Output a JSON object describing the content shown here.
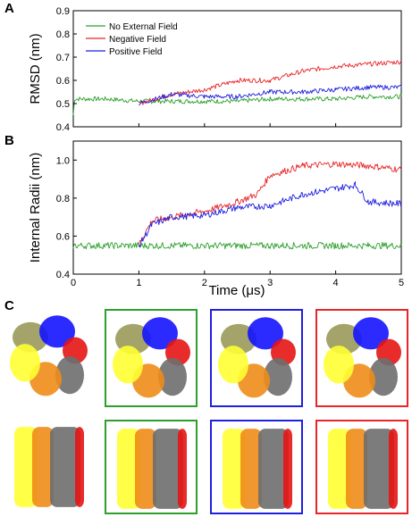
{
  "panel_c_label": "C",
  "chart_data": [
    {
      "panel": "A",
      "type": "line",
      "ylabel": "RMSD (nm)",
      "xlim": [
        0,
        5
      ],
      "ylim": [
        0.4,
        0.9
      ],
      "xticks": [
        0,
        1,
        2,
        3,
        4,
        5
      ],
      "yticks": [
        0.4,
        0.5,
        0.6,
        0.7,
        0.8,
        0.9
      ],
      "legend_position": "top-left",
      "series": [
        {
          "name": "No External Field",
          "color": "#2ca02c",
          "x": [
            0,
            0.02,
            0.5,
            1.0,
            1.5,
            2.0,
            2.5,
            3.0,
            3.5,
            4.0,
            4.5,
            5.0
          ],
          "y": [
            0.45,
            0.52,
            0.52,
            0.51,
            0.51,
            0.51,
            0.51,
            0.52,
            0.52,
            0.52,
            0.53,
            0.53
          ]
        },
        {
          "name": "Negative Field",
          "color": "#e8262a",
          "x": [
            1.0,
            1.5,
            2.0,
            2.5,
            3.0,
            3.5,
            4.0,
            4.5,
            5.0
          ],
          "y": [
            0.5,
            0.54,
            0.56,
            0.6,
            0.6,
            0.64,
            0.66,
            0.67,
            0.68
          ]
        },
        {
          "name": "Positive Field",
          "color": "#1f1fe0",
          "x": [
            1.0,
            1.5,
            2.0,
            2.5,
            3.0,
            3.5,
            4.0,
            4.5,
            5.0
          ],
          "y": [
            0.5,
            0.54,
            0.53,
            0.53,
            0.55,
            0.55,
            0.56,
            0.57,
            0.57
          ]
        }
      ]
    },
    {
      "panel": "B",
      "type": "line",
      "xlabel": "Time (μs)",
      "ylabel": "Internal Radii (nm)",
      "xlim": [
        0,
        5
      ],
      "ylim": [
        0.4,
        1.1
      ],
      "xticks": [
        0,
        1,
        2,
        3,
        4,
        5
      ],
      "yticks": [
        0.4,
        0.6,
        0.8,
        1.0
      ],
      "series": [
        {
          "name": "No External Field",
          "color": "#2ca02c",
          "x": [
            0,
            0.5,
            1.0,
            1.5,
            2.0,
            2.5,
            3.0,
            3.5,
            4.0,
            4.5,
            5.0
          ],
          "y": [
            0.55,
            0.55,
            0.55,
            0.55,
            0.55,
            0.55,
            0.55,
            0.55,
            0.55,
            0.55,
            0.55
          ]
        },
        {
          "name": "Negative Field",
          "color": "#e8262a",
          "x": [
            1.0,
            1.2,
            1.5,
            2.0,
            2.5,
            2.8,
            3.0,
            3.5,
            4.0,
            4.5,
            5.0
          ],
          "y": [
            0.56,
            0.68,
            0.7,
            0.73,
            0.78,
            0.82,
            0.92,
            0.97,
            0.98,
            0.97,
            0.95
          ]
        },
        {
          "name": "Positive Field",
          "color": "#1f1fe0",
          "x": [
            1.0,
            1.2,
            1.5,
            2.0,
            2.5,
            3.0,
            3.5,
            4.0,
            4.3,
            4.5,
            5.0
          ],
          "y": [
            0.55,
            0.66,
            0.7,
            0.71,
            0.75,
            0.76,
            0.82,
            0.85,
            0.87,
            0.78,
            0.77
          ]
        }
      ]
    }
  ],
  "protein_views": [
    {
      "row": "top",
      "frame_color": "none"
    },
    {
      "row": "top",
      "frame_color": "#2ca02c"
    },
    {
      "row": "top",
      "frame_color": "#1f1fe0"
    },
    {
      "row": "top",
      "frame_color": "#e8262a"
    },
    {
      "row": "bottom",
      "frame_color": "none"
    },
    {
      "row": "bottom",
      "frame_color": "#2ca02c"
    },
    {
      "row": "bottom",
      "frame_color": "#1f1fe0"
    },
    {
      "row": "bottom",
      "frame_color": "#e8262a"
    }
  ],
  "subunit_colors": [
    "#ffff33",
    "#f08c1a",
    "#6e6e6e",
    "#1414ff",
    "#e61414",
    "#9a9a5a"
  ]
}
